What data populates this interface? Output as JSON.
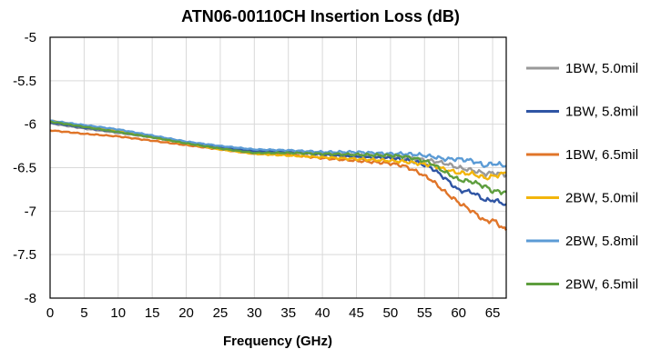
{
  "chart_data": {
    "type": "line",
    "title": "ATN06-00110CH Insertion Loss (dB)",
    "xlabel": "Frequency (GHz)",
    "ylabel": "",
    "xlim": [
      0,
      67
    ],
    "ylim": [
      -8,
      -5
    ],
    "x_ticks": [
      0,
      5,
      10,
      15,
      20,
      25,
      30,
      35,
      40,
      45,
      50,
      55,
      60,
      65
    ],
    "y_ticks": [
      -5,
      -5.5,
      -6,
      -6.5,
      -7,
      -7.5,
      -8
    ],
    "grid": true,
    "legend_position": "right",
    "x": [
      0,
      5,
      10,
      15,
      20,
      25,
      30,
      35,
      40,
      45,
      50,
      52,
      54,
      56,
      58,
      60,
      62,
      64,
      65,
      67
    ],
    "series": [
      {
        "name": "1BW, 5.0mil",
        "color": "#999999",
        "values": [
          -5.99,
          -6.05,
          -6.1,
          -6.15,
          -6.21,
          -6.27,
          -6.31,
          -6.32,
          -6.34,
          -6.36,
          -6.37,
          -6.38,
          -6.4,
          -6.42,
          -6.45,
          -6.5,
          -6.53,
          -6.57,
          -6.56,
          -6.58
        ]
      },
      {
        "name": "1BW, 5.8mil",
        "color": "#2F55A4",
        "values": [
          -5.98,
          -6.04,
          -6.09,
          -6.15,
          -6.21,
          -6.27,
          -6.31,
          -6.32,
          -6.35,
          -6.38,
          -6.39,
          -6.41,
          -6.44,
          -6.5,
          -6.62,
          -6.76,
          -6.78,
          -6.88,
          -6.87,
          -6.92
        ]
      },
      {
        "name": "1BW, 6.5mil",
        "color": "#E07529",
        "values": [
          -6.07,
          -6.11,
          -6.14,
          -6.19,
          -6.24,
          -6.29,
          -6.34,
          -6.35,
          -6.39,
          -6.42,
          -6.45,
          -6.48,
          -6.55,
          -6.64,
          -6.78,
          -6.9,
          -7.0,
          -7.12,
          -7.1,
          -7.22
        ]
      },
      {
        "name": "2BW, 5.0mil",
        "color": "#F2B50C",
        "values": [
          -5.96,
          -6.02,
          -6.08,
          -6.15,
          -6.22,
          -6.29,
          -6.34,
          -6.36,
          -6.38,
          -6.4,
          -6.42,
          -6.43,
          -6.45,
          -6.47,
          -6.52,
          -6.56,
          -6.57,
          -6.62,
          -6.6,
          -6.56
        ]
      },
      {
        "name": "2BW, 5.8mil",
        "color": "#5B9BD5",
        "values": [
          -5.96,
          -6.01,
          -6.06,
          -6.13,
          -6.2,
          -6.25,
          -6.29,
          -6.3,
          -6.32,
          -6.32,
          -6.34,
          -6.34,
          -6.35,
          -6.37,
          -6.4,
          -6.4,
          -6.42,
          -6.48,
          -6.45,
          -6.48
        ]
      },
      {
        "name": "2BW, 6.5mil",
        "color": "#5E9E3E",
        "values": [
          -5.97,
          -6.03,
          -6.09,
          -6.15,
          -6.22,
          -6.28,
          -6.33,
          -6.33,
          -6.34,
          -6.35,
          -6.36,
          -6.37,
          -6.4,
          -6.45,
          -6.55,
          -6.64,
          -6.66,
          -6.72,
          -6.77,
          -6.78
        ]
      }
    ]
  }
}
